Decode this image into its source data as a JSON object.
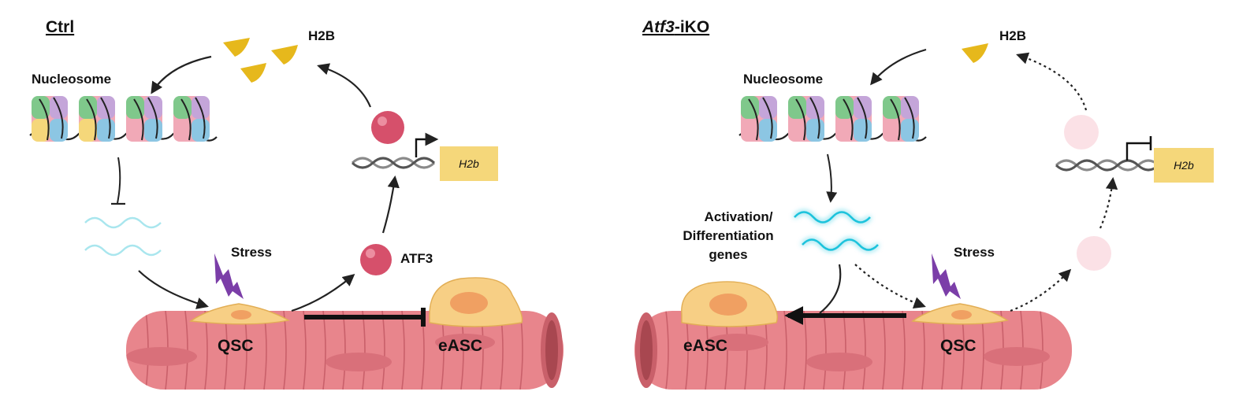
{
  "left_panel": {
    "title": "Ctrl",
    "labels": {
      "h2b_protein": "H2B",
      "nucleosome": "Nucleosome",
      "stress": "Stress",
      "atf3": "ATF3",
      "gene": "H2b",
      "qsc": "QSC",
      "easc": "eASC"
    }
  },
  "right_panel": {
    "title_italic": "Atf3",
    "title_suffix": "-iKO",
    "labels": {
      "h2b_protein": "H2B",
      "nucleosome": "Nucleosome",
      "activation_line1": "Activation/",
      "activation_line2": "Differentiation",
      "activation_line3": "genes",
      "stress": "Stress",
      "gene": "H2b",
      "easc": "eASC",
      "qsc": "QSC"
    }
  },
  "colors": {
    "muscle": "#e8858c",
    "muscle_dark": "#c9606a",
    "cell_body": "#f7cf85",
    "nucleus": "#f0a062",
    "h2b_protein": "#e6b81c",
    "atf3": "#d6506b",
    "atf3_faded": "#fbe1e6",
    "gene_box": "#f5d77a",
    "stress": "#7b3ea8",
    "rna_faint": "#a9e6ee",
    "rna_bright": "#1fc3dc"
  }
}
